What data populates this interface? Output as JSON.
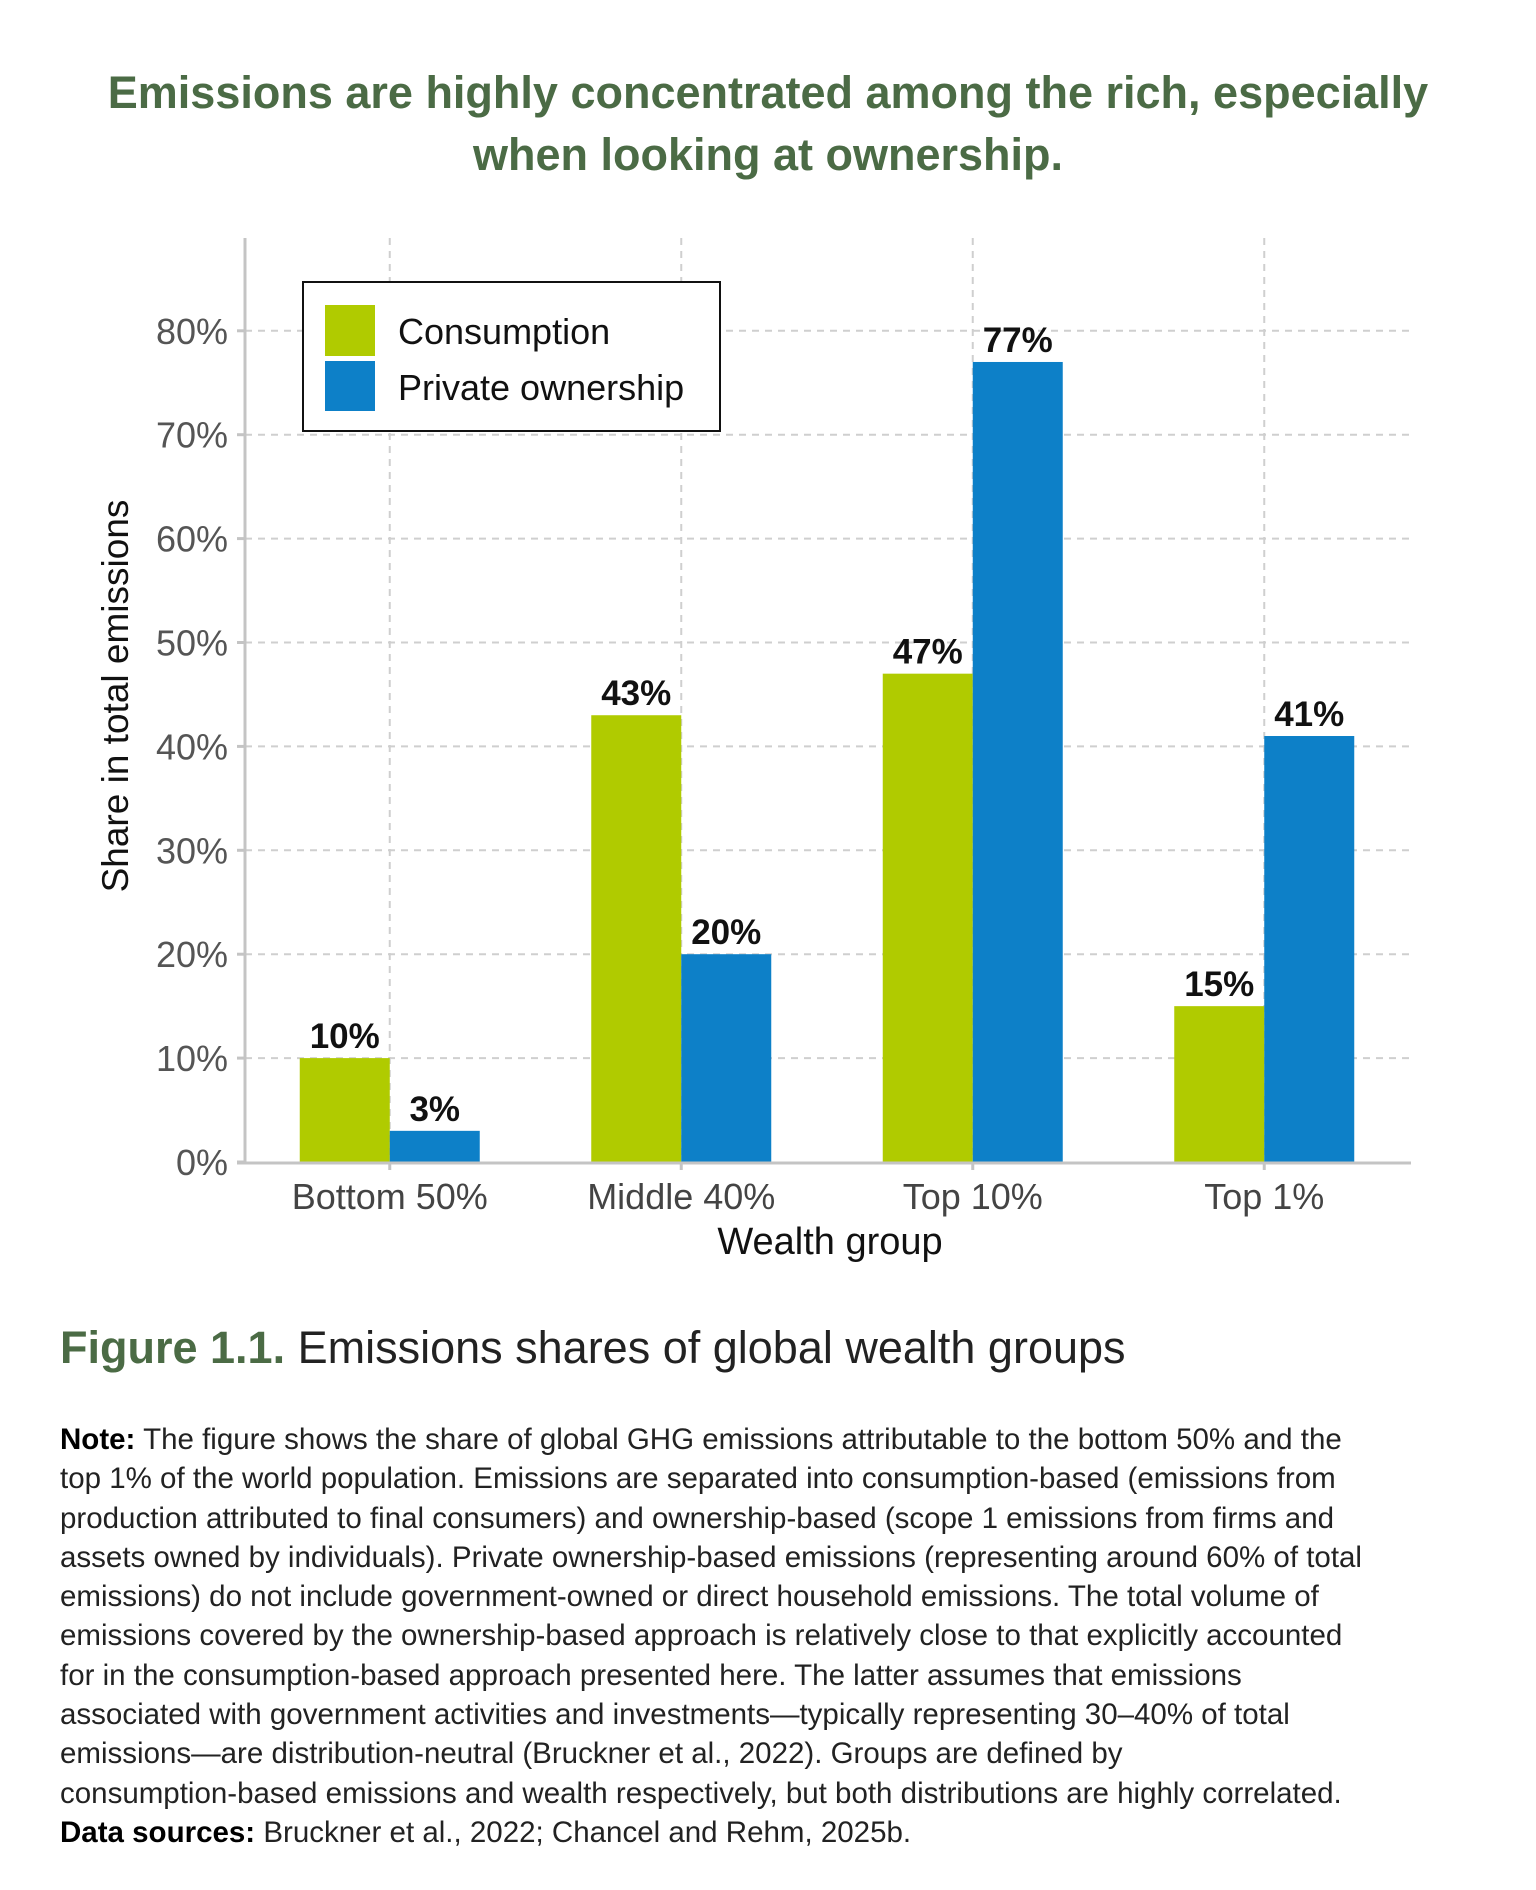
{
  "title_lines": [
    "Emissions are highly concentrated among the rich, especially",
    "when looking at ownership."
  ],
  "chart_data": {
    "type": "bar",
    "categories": [
      "Bottom 50%",
      "Middle 40%",
      "Top 10%",
      "Top 1%"
    ],
    "series": [
      {
        "name": "Consumption",
        "color": "#b0cb00",
        "values": [
          10,
          43,
          47,
          15
        ],
        "labels": [
          "10%",
          "43%",
          "47%",
          "15%"
        ]
      },
      {
        "name": "Private ownership",
        "color": "#0d80c8",
        "values": [
          3,
          20,
          77,
          41
        ],
        "labels": [
          "3%",
          "20%",
          "77%",
          "41%"
        ]
      }
    ],
    "xlabel": "Wealth group",
    "ylabel": "Share in total emissions",
    "ylim": [
      0,
      90
    ],
    "yticks": [
      0,
      10,
      20,
      30,
      40,
      50,
      60,
      70,
      80
    ],
    "ytick_labels": [
      "0%",
      "10%",
      "20%",
      "30%",
      "40%",
      "50%",
      "60%",
      "70%",
      "80%"
    ],
    "grid": true,
    "legend_position": "top-left"
  },
  "caption": {
    "label": "Figure 1.1.",
    "text": "Emissions shares of global wealth groups"
  },
  "note": {
    "label": "Note:",
    "lines": [
      "The figure shows the share of global GHG emissions attributable to the bottom 50% and the",
      "top 1% of the world population. Emissions are separated into consumption-based (emissions from",
      "production attributed to final consumers) and ownership-based (scope 1 emissions from firms and",
      "assets owned by individuals). Private ownership-based emissions (representing around 60% of total",
      "emissions) do not include government-owned or direct household emissions. The total volume of",
      "emissions covered by the ownership-based approach is relatively close to that explicitly accounted",
      "for in the consumption-based approach presented here. The latter assumes that emissions",
      "associated with government activities and investments—typically representing 30–40% of total",
      "emissions—are distribution-neutral (Bruckner et al., 2022). Groups are defined by",
      "consumption-based emissions and wealth respectively, but both distributions are highly correlated."
    ],
    "sources_label": "Data sources:",
    "sources_text": "Bruckner et al., 2022; Chancel and Rehm, 2025b."
  }
}
